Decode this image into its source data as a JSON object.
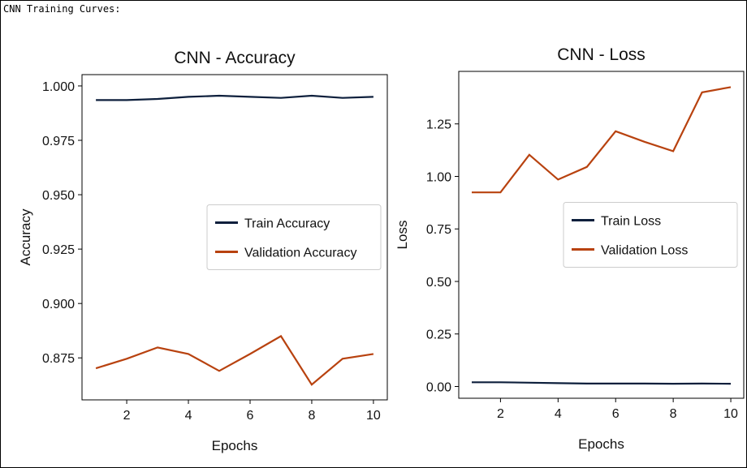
{
  "header": "CNN Training Curves:",
  "chart_data": [
    {
      "type": "line",
      "title": "CNN - Accuracy",
      "x_label": "Epochs",
      "y_label": "Accuracy",
      "x": [
        1,
        2,
        3,
        4,
        5,
        6,
        7,
        8,
        9,
        10
      ],
      "series": [
        {
          "name": "Train Accuracy",
          "color": "#0d1f3c",
          "values": [
            0.9935,
            0.9935,
            0.994,
            0.995,
            0.9955,
            0.995,
            0.9945,
            0.9955,
            0.9945,
            0.995
          ]
        },
        {
          "name": "Validation Accuracy",
          "color": "#b8420f",
          "values": [
            0.8702,
            0.8746,
            0.8798,
            0.8768,
            0.869,
            0.8768,
            0.885,
            0.8627,
            0.8746,
            0.8768
          ]
        }
      ],
      "xlim": [
        0.55,
        10.45
      ],
      "xticks": [
        2,
        4,
        6,
        8,
        10
      ],
      "ylim": [
        0.8557,
        1.0052
      ],
      "yticks": [
        0.875,
        {
          "value": 0.9,
          "label": "0.900"
        },
        0.925,
        {
          "value": 0.95,
          "label": "0.950"
        },
        0.975,
        {
          "value": 1.0,
          "label": "1.000"
        }
      ],
      "grid": false,
      "legend": "center right"
    },
    {
      "type": "line",
      "title": "CNN - Loss",
      "x_label": "Epochs",
      "y_label": "Loss",
      "x": [
        1,
        2,
        3,
        4,
        5,
        6,
        7,
        8,
        9,
        10
      ],
      "series": [
        {
          "name": "Train Loss",
          "color": "#0d1f3c",
          "values": [
            0.02,
            0.02,
            0.018,
            0.016,
            0.014,
            0.014,
            0.014,
            0.013,
            0.014,
            0.013
          ]
        },
        {
          "name": "Validation Loss",
          "color": "#b8420f",
          "values": [
            0.924,
            0.924,
            1.103,
            0.985,
            1.045,
            1.215,
            1.165,
            1.12,
            1.4,
            1.425
          ]
        }
      ],
      "xlim": [
        0.55,
        10.45
      ],
      "xticks": [
        2,
        4,
        6,
        8,
        10
      ],
      "ylim": [
        -0.056,
        1.5
      ],
      "yticks": [
        {
          "value": 0,
          "label": "0.00"
        },
        0.25,
        {
          "value": 0.5,
          "label": "0.50"
        },
        0.75,
        {
          "value": 1.0,
          "label": "1.00"
        },
        1.25
      ],
      "grid": false,
      "legend": "center right"
    }
  ]
}
